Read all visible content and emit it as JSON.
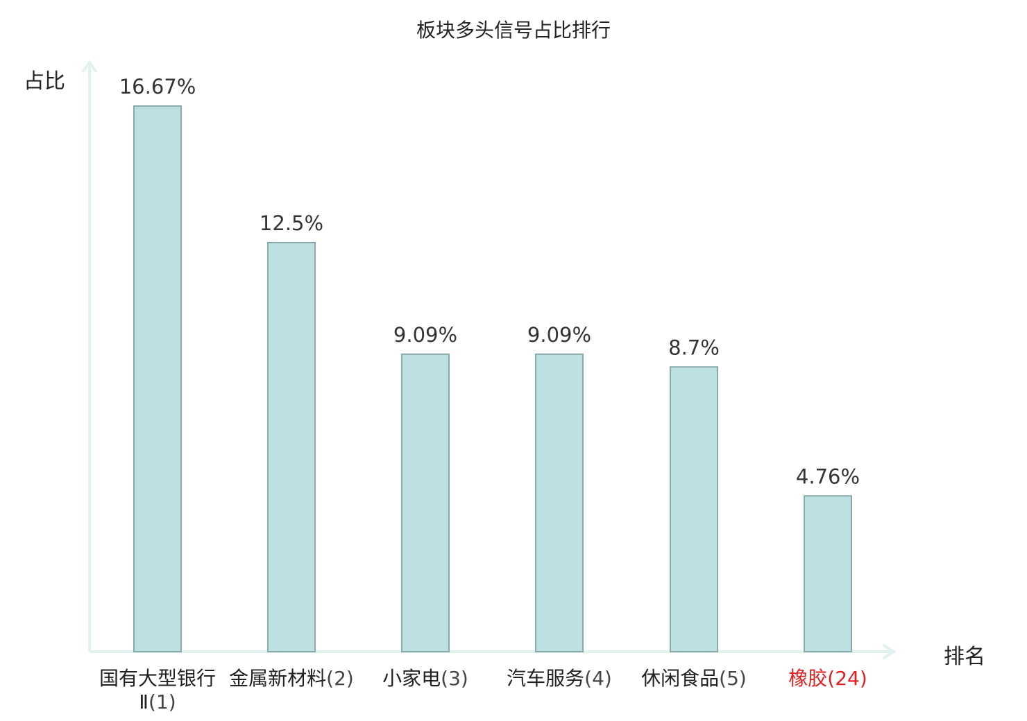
{
  "chart_data": {
    "type": "bar",
    "title": "板块多头信号占比排行",
    "ylabel": "占比",
    "xlabel": "排名",
    "categories": [
      {
        "name": "国有大型银行Ⅱ",
        "rank": "(1)"
      },
      {
        "name": "金属新材料",
        "rank": "(2)"
      },
      {
        "name": "小家电",
        "rank": "(3)"
      },
      {
        "name": "汽车服务",
        "rank": "(4)"
      },
      {
        "name": "休闲食品",
        "rank": "(5)"
      },
      {
        "name": "橡胶",
        "rank": "(24)"
      }
    ],
    "values": [
      16.67,
      12.5,
      9.09,
      9.09,
      8.7,
      4.76
    ],
    "value_labels": [
      "16.67%",
      "12.5%",
      "9.09%",
      "9.09%",
      "8.7%",
      "4.76%"
    ],
    "highlight_index": 5,
    "ylim": [
      0,
      16.67
    ],
    "grid": false,
    "colors": {
      "bar_fill": "#bde1e3",
      "bar_stroke": "#8aa9ab",
      "axis": "#dff2ef",
      "highlight": "#e02020"
    }
  }
}
